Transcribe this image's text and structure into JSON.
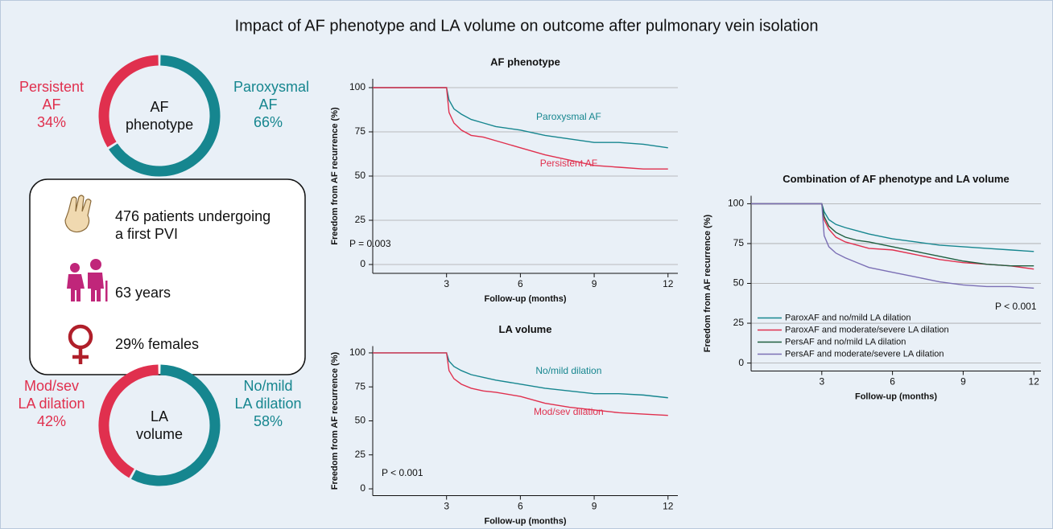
{
  "title": "Impact of AF phenotype and LA volume on outcome after pulmonary vein isolation",
  "info_box": {
    "items": [
      "476 patients undergoing a first PVI",
      "63 years",
      "29% females"
    ]
  },
  "chart_data": [
    {
      "type": "donut",
      "center_label": "AF phenotype",
      "categories": [
        "Persistent AF",
        "Paroxysmal AF"
      ],
      "values": [
        34,
        66
      ],
      "value_labels": [
        "34%",
        "66%"
      ],
      "colors": [
        "#e0304e",
        "#16868f"
      ]
    },
    {
      "type": "donut",
      "center_label": "LA volume",
      "categories": [
        "Mod/sev LA dilation",
        "No/mild LA dilation"
      ],
      "values": [
        42,
        58
      ],
      "value_labels": [
        "42%",
        "58%"
      ],
      "colors": [
        "#e0304e",
        "#16868f"
      ]
    },
    {
      "type": "line",
      "title": "AF phenotype",
      "xlabel": "Follow-up (months)",
      "ylabel": "Freedom from AF recurrence (%)",
      "annotation": "P = 0.003",
      "x": [
        0,
        3,
        3.1,
        3.3,
        3.6,
        4,
        4.5,
        5,
        6,
        7,
        8,
        9,
        10,
        11,
        12
      ],
      "series": [
        {
          "name": "Paroxysmal AF",
          "color": "#16868f",
          "values": [
            100,
            100,
            93,
            88,
            85,
            82,
            80,
            78,
            76,
            73,
            71,
            69,
            69,
            68,
            66
          ]
        },
        {
          "name": "Persistent AF",
          "color": "#e0304e",
          "values": [
            100,
            100,
            86,
            80,
            76,
            73,
            72,
            70,
            66,
            62,
            59,
            56,
            55,
            54,
            54
          ]
        }
      ],
      "xlim": [
        0,
        12.4
      ],
      "ylim": [
        -5,
        105
      ],
      "xticks": [
        3,
        6,
        9,
        12
      ],
      "yticks": [
        0,
        25,
        50,
        75,
        100
      ],
      "grid": true,
      "legend": "inline"
    },
    {
      "type": "line",
      "title": "LA volume",
      "xlabel": "Follow-up (months)",
      "ylabel": "Freedom from AF recurrence (%)",
      "annotation": "P < 0.001",
      "x": [
        0,
        3,
        3.1,
        3.3,
        3.6,
        4,
        4.5,
        5,
        6,
        7,
        8,
        9,
        10,
        11,
        12
      ],
      "series": [
        {
          "name": "No/mild dilation",
          "color": "#16868f",
          "values": [
            100,
            100,
            94,
            90,
            87,
            84,
            82,
            80,
            77,
            74,
            72,
            70,
            70,
            69,
            67
          ]
        },
        {
          "name": "Mod/sev dilation",
          "color": "#e0304e",
          "values": [
            100,
            100,
            87,
            81,
            77,
            74,
            72,
            71,
            68,
            63,
            60,
            58,
            56,
            55,
            54
          ]
        }
      ],
      "xlim": [
        0,
        12.4
      ],
      "ylim": [
        -5,
        105
      ],
      "xticks": [
        3,
        6,
        9,
        12
      ],
      "yticks": [
        0,
        25,
        50,
        75,
        100
      ],
      "grid": false,
      "legend": "inline"
    },
    {
      "type": "line",
      "title": "Combination of AF phenotype and LA volume",
      "xlabel": "Follow-up (months)",
      "ylabel": "Freedom from AF recurrence (%)",
      "annotation": "P < 0.001",
      "x": [
        0,
        3,
        3.1,
        3.3,
        3.6,
        4,
        4.5,
        5,
        6,
        7,
        8,
        9,
        10,
        11,
        12
      ],
      "series": [
        {
          "name": "ParoxAF and no/mild LA dilation",
          "color": "#16868f",
          "values": [
            100,
            100,
            95,
            90,
            87,
            85,
            83,
            81,
            78,
            76,
            74,
            73,
            72,
            71,
            70
          ]
        },
        {
          "name": "ParoxAF and moderate/severe LA dilation",
          "color": "#e0304e",
          "values": [
            100,
            100,
            90,
            84,
            79,
            76,
            74,
            72,
            71,
            68,
            65,
            63,
            62,
            61,
            59
          ]
        },
        {
          "name": "PersAF and no/mild LA dilation",
          "color": "#1f5e3f",
          "values": [
            100,
            100,
            92,
            86,
            82,
            79,
            77,
            76,
            73,
            70,
            67,
            64,
            62,
            61,
            61
          ]
        },
        {
          "name": "PersAF and moderate/severe LA dilation",
          "color": "#7b6fb5",
          "values": [
            100,
            100,
            80,
            73,
            69,
            66,
            63,
            60,
            57,
            54,
            51,
            49,
            48,
            48,
            47
          ]
        }
      ],
      "xlim": [
        0,
        12.3
      ],
      "ylim": [
        -5,
        105
      ],
      "xticks": [
        3,
        6,
        9,
        12
      ],
      "yticks": [
        0,
        25,
        50,
        75,
        100
      ],
      "grid": true,
      "legend": "lower left"
    }
  ]
}
